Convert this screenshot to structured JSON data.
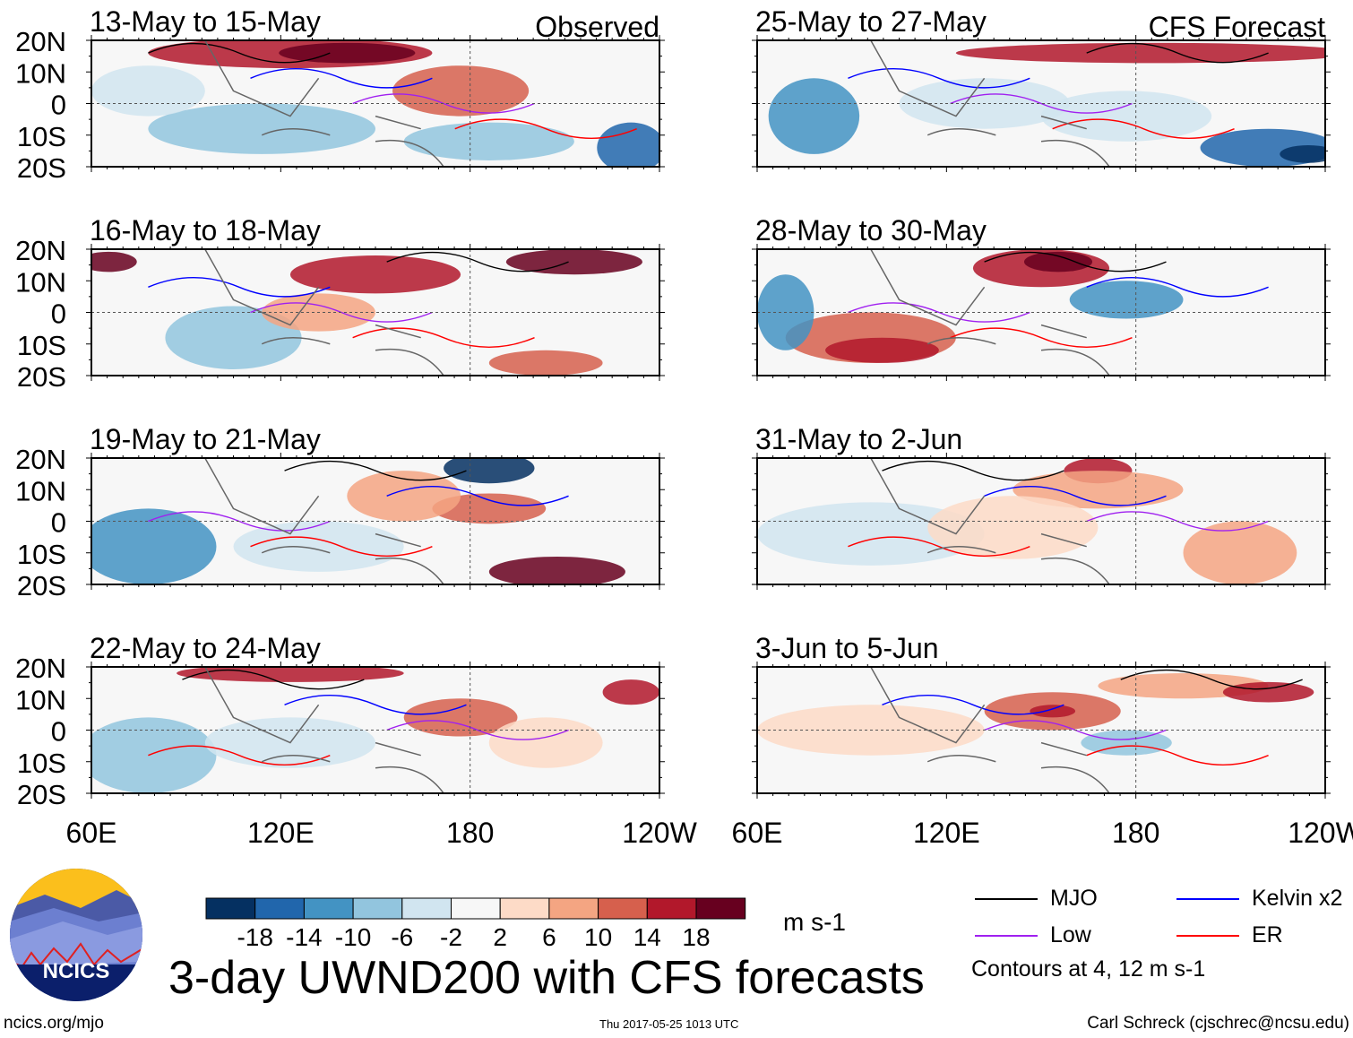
{
  "chart_data": {
    "type": "heatmap",
    "title": "3-day UWND200 with CFS forecasts",
    "variable": "UWND200",
    "units": "m s-1",
    "columns": [
      {
        "label": "Observed",
        "panels": [
          "13-May to 15-May",
          "16-May to 18-May",
          "19-May to 21-May",
          "22-May to 24-May"
        ]
      },
      {
        "label": "CFS Forecast",
        "panels": [
          "25-May to 27-May",
          "28-May to 30-May",
          "31-May to 2-Jun",
          "3-Jun to 5-Jun"
        ]
      }
    ],
    "lat_ticks": [
      "20N",
      "10N",
      "0",
      "10S",
      "20S"
    ],
    "lon_ticks": [
      "60E",
      "120E",
      "180",
      "120W"
    ],
    "lat_range": [
      -20,
      20
    ],
    "lon_range": [
      60,
      240
    ],
    "colorbar": {
      "levels": [
        "-18",
        "-14",
        "-10",
        "-6",
        "-2",
        "2",
        "6",
        "10",
        "14",
        "18"
      ],
      "colors": [
        "#053061",
        "#2166ac",
        "#4393c3",
        "#92c5de",
        "#d1e5f0",
        "#f7f7f7",
        "#fddbc7",
        "#f4a582",
        "#d6604d",
        "#b2182b",
        "#67001f"
      ]
    },
    "legend": [
      {
        "label": "MJO",
        "color": "#000000"
      },
      {
        "label": "Kelvin x2",
        "color": "#0000ff"
      },
      {
        "label": "Low",
        "color": "#a020f0"
      },
      {
        "label": "ER",
        "color": "#ff0000"
      }
    ],
    "contour_note": "Contours at 4, 12 m s-1"
  },
  "footer": {
    "left": "ncics.org/mjo",
    "center": "Thu 2017-05-25 1013 UTC",
    "right": "Carl Schreck (cjschrec@ncsu.edu)",
    "logo_text": "NCICS"
  }
}
